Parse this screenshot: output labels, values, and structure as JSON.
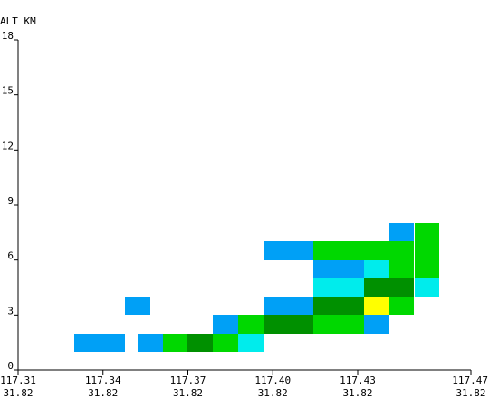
{
  "chart_data": {
    "type": "heatmap",
    "title": "",
    "ylabel": "ALT KM",
    "xlabel": "",
    "xlim": [
      117.31,
      117.47
    ],
    "ylim": [
      0,
      18
    ],
    "y_ticks": [
      "0",
      "3",
      "6",
      "9",
      "12",
      "15",
      "18"
    ],
    "x_ticks": [
      {
        "lon": "117.31",
        "lat": "31.82"
      },
      {
        "lon": "117.34",
        "lat": "31.82"
      },
      {
        "lon": "117.37",
        "lat": "31.82"
      },
      {
        "lon": "117.40",
        "lat": "31.82"
      },
      {
        "lon": "117.43",
        "lat": "31.82"
      },
      {
        "lon": "117.47",
        "lat": "31.82"
      }
    ],
    "grid": false,
    "legend": "none",
    "cell_width": 0.00889,
    "cell_height": 1.0,
    "colors": {
      "blue": "#00a0f6",
      "cyan": "#00ecec",
      "lightgreen": "#00d800",
      "darkgreen": "#009000",
      "yellow": "#ffff00"
    },
    "cells": [
      {
        "x": 117.3299,
        "y": 1,
        "color": "blue"
      },
      {
        "x": 117.3388,
        "y": 1,
        "color": "blue"
      },
      {
        "x": 117.3522,
        "y": 1,
        "color": "blue"
      },
      {
        "x": 117.3611,
        "y": 1,
        "color": "lightgreen"
      },
      {
        "x": 117.3699,
        "y": 1,
        "color": "darkgreen"
      },
      {
        "x": 117.3788,
        "y": 1,
        "color": "lightgreen"
      },
      {
        "x": 117.3877,
        "y": 1,
        "color": "cyan"
      },
      {
        "x": 117.3788,
        "y": 2,
        "color": "blue"
      },
      {
        "x": 117.3877,
        "y": 2,
        "color": "lightgreen"
      },
      {
        "x": 117.3966,
        "y": 2,
        "color": "darkgreen"
      },
      {
        "x": 117.4055,
        "y": 2,
        "color": "darkgreen"
      },
      {
        "x": 117.4144,
        "y": 2,
        "color": "lightgreen"
      },
      {
        "x": 117.4233,
        "y": 2,
        "color": "lightgreen"
      },
      {
        "x": 117.4322,
        "y": 2,
        "color": "blue"
      },
      {
        "x": 117.3477,
        "y": 3,
        "color": "blue"
      },
      {
        "x": 117.3966,
        "y": 3,
        "color": "blue"
      },
      {
        "x": 117.4055,
        "y": 3,
        "color": "blue"
      },
      {
        "x": 117.4144,
        "y": 3,
        "color": "darkgreen"
      },
      {
        "x": 117.4233,
        "y": 3,
        "color": "darkgreen"
      },
      {
        "x": 117.4322,
        "y": 3,
        "color": "yellow"
      },
      {
        "x": 117.4411,
        "y": 3,
        "color": "lightgreen"
      },
      {
        "x": 117.4144,
        "y": 4,
        "color": "cyan"
      },
      {
        "x": 117.4233,
        "y": 4,
        "color": "cyan"
      },
      {
        "x": 117.4322,
        "y": 4,
        "color": "darkgreen"
      },
      {
        "x": 117.4411,
        "y": 4,
        "color": "darkgreen"
      },
      {
        "x": 117.45,
        "y": 4,
        "color": "cyan"
      },
      {
        "x": 117.4144,
        "y": 5,
        "color": "blue"
      },
      {
        "x": 117.4233,
        "y": 5,
        "color": "blue"
      },
      {
        "x": 117.4322,
        "y": 5,
        "color": "cyan"
      },
      {
        "x": 117.4411,
        "y": 5,
        "color": "lightgreen"
      },
      {
        "x": 117.45,
        "y": 5,
        "color": "lightgreen"
      },
      {
        "x": 117.3966,
        "y": 6,
        "color": "blue"
      },
      {
        "x": 117.4055,
        "y": 6,
        "color": "blue"
      },
      {
        "x": 117.4144,
        "y": 6,
        "color": "lightgreen"
      },
      {
        "x": 117.4233,
        "y": 6,
        "color": "lightgreen"
      },
      {
        "x": 117.4322,
        "y": 6,
        "color": "lightgreen"
      },
      {
        "x": 117.4411,
        "y": 6,
        "color": "lightgreen"
      },
      {
        "x": 117.45,
        "y": 6,
        "color": "lightgreen"
      },
      {
        "x": 117.4411,
        "y": 7,
        "color": "blue"
      },
      {
        "x": 117.45,
        "y": 7,
        "color": "lightgreen"
      }
    ]
  }
}
